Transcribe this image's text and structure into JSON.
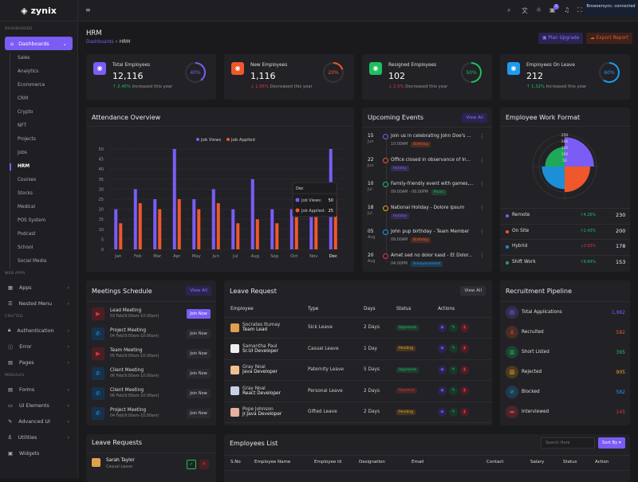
{
  "brand": "zynix",
  "sidebar": {
    "section_dashboards": "DASHBOARDS",
    "dashboards_label": "Dashboards",
    "dashboard_items": [
      "Sales",
      "Analytics",
      "Ecommerce",
      "CRM",
      "Crypto",
      "NFT",
      "Projects",
      "Jobs",
      "HRM",
      "Courses",
      "Stocks",
      "Medical",
      "POS System",
      "Podcast",
      "School",
      "Social Media"
    ],
    "active_item": "HRM",
    "groups": [
      {
        "title": "WEB APPS",
        "items": [
          {
            "label": "Apps",
            "icon": "grid-icon",
            "chevron": true
          },
          {
            "label": "Nested Menu",
            "icon": "layers-icon",
            "chevron": true
          }
        ]
      },
      {
        "title": "CRAFTED",
        "items": [
          {
            "label": "Authentication",
            "icon": "lock-icon",
            "chevron": true
          },
          {
            "label": "Error",
            "icon": "error-icon",
            "chevron": true
          },
          {
            "label": "Pages",
            "icon": "page-icon",
            "chevron": true
          }
        ]
      },
      {
        "title": "MODULES",
        "items": [
          {
            "label": "Forms",
            "icon": "form-icon",
            "chevron": true
          },
          {
            "label": "UI Elements",
            "icon": "box-icon",
            "chevron": true
          },
          {
            "label": "Advanced UI",
            "icon": "brush-icon",
            "chevron": true
          },
          {
            "label": "Utilities",
            "icon": "bulb-icon",
            "chevron": true
          },
          {
            "label": "Widgets",
            "icon": "gift-icon",
            "chevron": false
          }
        ]
      }
    ]
  },
  "header": {
    "notification_count": "5",
    "browsersync": "Browsersync: connected"
  },
  "page": {
    "title": "HRM",
    "breadcrumb_parent": "Dashboards",
    "breadcrumb_sep": "»",
    "breadcrumb_current": "HRM",
    "plan_upgrade": "Plan Upgrade",
    "export_report": "Export Report"
  },
  "stats": [
    {
      "label": "Total Employees",
      "value": "12,116",
      "change": "2.45%",
      "direction": "up",
      "note": "Increased this year",
      "percent": 40,
      "color": "#7b5cf5"
    },
    {
      "label": "New Employees",
      "value": "1,116",
      "change": "1.95%",
      "direction": "down",
      "note": "Decreased this year",
      "percent": 20,
      "color": "#f0572b"
    },
    {
      "label": "Resigned Employees",
      "value": "102",
      "change": "2.5%",
      "direction": "down",
      "note": "Decreased this year",
      "percent": 50,
      "color": "#1fbf5f"
    },
    {
      "label": "Employees On Leave",
      "value": "212",
      "change": "1.32%",
      "direction": "up",
      "note": "Increased this year",
      "percent": 60,
      "color": "#1d9bf0"
    }
  ],
  "attendance": {
    "title": "Attendance Overview"
  },
  "chart_data": {
    "type": "bar",
    "categories": [
      "Jan",
      "Feb",
      "Mar",
      "Apr",
      "May",
      "Jun",
      "Jul",
      "Aug",
      "Sep",
      "Oct",
      "Nov",
      "Dec"
    ],
    "series": [
      {
        "name": "Job Views",
        "color": "#7b5cf5",
        "values": [
          20,
          30,
          25,
          50,
          25,
          30,
          20,
          35,
          20,
          20,
          20,
          50
        ]
      },
      {
        "name": "Job Applied",
        "color": "#f0572b",
        "values": [
          13,
          23,
          20,
          25,
          20,
          23,
          13,
          15,
          13,
          17,
          17,
          25
        ]
      }
    ],
    "ylim": [
      0,
      50
    ],
    "yticks": [
      0,
      5,
      10,
      15,
      20,
      25,
      30,
      35,
      40,
      45,
      50
    ],
    "legend": "top",
    "grid": true,
    "tooltip": {
      "title": "Dec",
      "rows": [
        {
          "label": "Job Views:",
          "value": "50"
        },
        {
          "label": "Job Applied:",
          "value": "25"
        }
      ]
    }
  },
  "events": {
    "title": "Upcoming Events",
    "view_all": "View All",
    "items": [
      {
        "day": "15",
        "month": "Jun",
        "text": "Join us in celebrating John Doe's ...",
        "time": "10:00AM",
        "tag": "Birthday",
        "tag_color": "#f0572b",
        "dot": "#7b5cf5"
      },
      {
        "day": "22",
        "month": "Jun",
        "text": "Office closed in observance of In...",
        "time": "",
        "tag": "Holiday",
        "tag_color": "#7b5cf5",
        "dot": "#f0572b"
      },
      {
        "day": "10",
        "month": "Jul",
        "text": "Family-friendly event with games,...",
        "time": "09:00AM - 06:00PM",
        "tag": "Picnic",
        "tag_color": "#1fbf5f",
        "dot": "#1fbf5f"
      },
      {
        "day": "18",
        "month": "Jul",
        "text": "National Holiday - Dolore Ipsum",
        "time": "",
        "tag": "Holiday",
        "tag_color": "#7b5cf5",
        "dot": "#f0a21b"
      },
      {
        "day": "05",
        "month": "Aug",
        "text": "John pup birthday - Team Member",
        "time": "09:00AM",
        "tag": "Birthday",
        "tag_color": "#f0572b",
        "dot": "#1d9bf0"
      },
      {
        "day": "20",
        "month": "Aug",
        "text": "Amet sed no dolor kasd - Et Dolor...",
        "time": "04:00PM",
        "tag": "Announcement",
        "tag_color": "#1d9bf0",
        "dot": "#e0353f"
      }
    ]
  },
  "work_format": {
    "title": "Employee Work Format",
    "ticks": [
      "50",
      "100",
      "150",
      "200",
      "250"
    ],
    "items": [
      {
        "label": "Remote",
        "change": "4.26%",
        "direction": "up",
        "value": 230,
        "color": "#7b5cf5"
      },
      {
        "label": "On Site",
        "change": "2.43%",
        "direction": "up",
        "value": 200,
        "color": "#f0572b"
      },
      {
        "label": "Hybrid",
        "change": "0.93%",
        "direction": "down",
        "value": 178,
        "color": "#1d8fd6"
      },
      {
        "label": "Shift Work",
        "change": "8.84%",
        "direction": "up",
        "value": 153,
        "color": "#1fa85a"
      }
    ]
  },
  "meetings": {
    "title": "Meetings Schedule",
    "view_all": "View All",
    "join": "Join Now",
    "items": [
      {
        "title": "Lead Meeting",
        "time": "03 Feb(9:00am-10:00am)",
        "icon": "video-icon",
        "primary": true
      },
      {
        "title": "Project Meeting",
        "time": "04 Feb(9:00am-10:00am)",
        "icon": "phone-icon"
      },
      {
        "title": "Team Meeting",
        "time": "05 Feb(9:00am-10:00am)",
        "icon": "video-icon"
      },
      {
        "title": "Client Meeting",
        "time": "06 Feb(9:00am-10:00am)",
        "icon": "phone-icon"
      },
      {
        "title": "Client Meeting",
        "time": "06 Feb(9:00am-10:00am)",
        "icon": "phone-icon"
      },
      {
        "title": "Project Meeting",
        "time": "04 Feb(9:00am-10:00am)",
        "icon": "phone-icon"
      }
    ]
  },
  "leave_request": {
    "title": "Leave Request",
    "view_all": "View All",
    "columns": [
      "Employee",
      "Type",
      "Days",
      "Status",
      "Actions"
    ],
    "rows": [
      {
        "name": "Socrates Itumay",
        "role": "Team Lead",
        "type": "Sick Leave",
        "days": "2 Days",
        "status": "Approved"
      },
      {
        "name": "Samantha Paul",
        "role": "Sr.UI Developer",
        "type": "Casual Leave",
        "days": "1 Day",
        "status": "Pending"
      },
      {
        "name": "Gray Noal",
        "role": "Java Developer",
        "type": "Paternity Leave",
        "days": "5 Days",
        "status": "Approved"
      },
      {
        "name": "Gray Noal",
        "role": "React Developer",
        "type": "Personal Leave",
        "days": "2 Days",
        "status": "Rejected"
      },
      {
        "name": "Pope Johnson",
        "role": "Jr.Java Developer",
        "type": "Gifted Leave",
        "days": "2 Days",
        "status": "Pending"
      }
    ]
  },
  "recruitment": {
    "title": "Recruitment Pipeline",
    "items": [
      {
        "label": "Total Applications",
        "value": "1,982",
        "color": "#7b5cf5",
        "icon": "file-icon"
      },
      {
        "label": "Recruited",
        "value": "582",
        "color": "#f0572b",
        "icon": "user-plus-icon"
      },
      {
        "label": "Short Listed",
        "value": "395",
        "color": "#1fbf5f",
        "icon": "clipboard-icon"
      },
      {
        "label": "Rejected",
        "value": "905",
        "color": "#f0a21b",
        "icon": "file-x-icon"
      },
      {
        "label": "Blocked",
        "value": "582",
        "color": "#1d9bf0",
        "icon": "block-icon"
      },
      {
        "label": "Interviewed",
        "value": "145",
        "color": "#e0353f",
        "icon": "monitor-icon"
      }
    ]
  },
  "leave_requests_small": {
    "title": "Leave Requests",
    "items": [
      {
        "name": "Sarah Taylor",
        "type": "Casual Leave"
      }
    ]
  },
  "employees_list": {
    "title": "Employees List",
    "search_placeholder": "Search Here",
    "sort_by": "Sort By",
    "columns": [
      "S.No",
      "Employee Name",
      "Employee Id",
      "Designation",
      "Email",
      "Contact",
      "Salary",
      "Status",
      "Action"
    ]
  }
}
